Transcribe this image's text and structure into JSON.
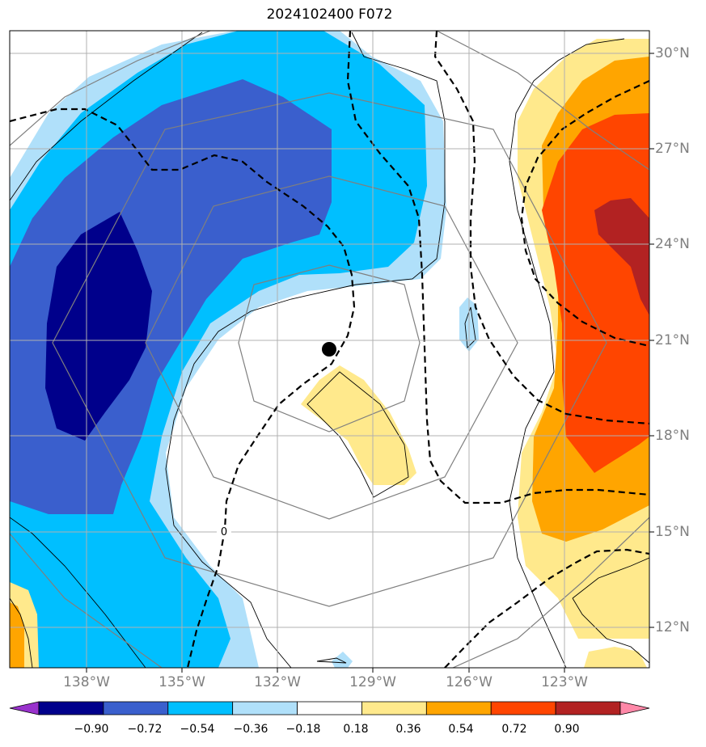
{
  "title": "2024102400 F072",
  "map": {
    "longitude_labels": [
      "138°W",
      "135°W",
      "132°W",
      "129°W",
      "126°W",
      "123°W"
    ],
    "latitude_labels": [
      "30°N",
      "27°N",
      "24°N",
      "21°N",
      "18°N",
      "15°N",
      "12°N"
    ],
    "zero_contour_label": "0",
    "storm_center": {
      "lon": "130.4°W",
      "lat": "20.7°N"
    }
  },
  "colorbar": {
    "tick_labels": [
      "−0.90",
      "−0.72",
      "−0.54",
      "−0.36",
      "−0.18",
      "0.18",
      "0.36",
      "0.54",
      "0.72",
      "0.90"
    ],
    "colors": [
      "#9932cc",
      "#00008b",
      "#3a5fcd",
      "#00bfff",
      "#b0e0fa",
      "#ffffff",
      "#ffe98c",
      "#ffa500",
      "#ff4500",
      "#b22222",
      "#ff88a8"
    ]
  },
  "fill_colors": {
    "lt_m090": "#9932cc",
    "m090_m072": "#00008b",
    "m072_m054": "#3a5fcd",
    "m054_m036": "#00bfff",
    "m036_m018": "#b0e0fa",
    "p018_p036": "#ffe98c",
    "p036_p054": "#ffa500",
    "p054_p072": "#ff4500",
    "p072_p090": "#b22222"
  }
}
